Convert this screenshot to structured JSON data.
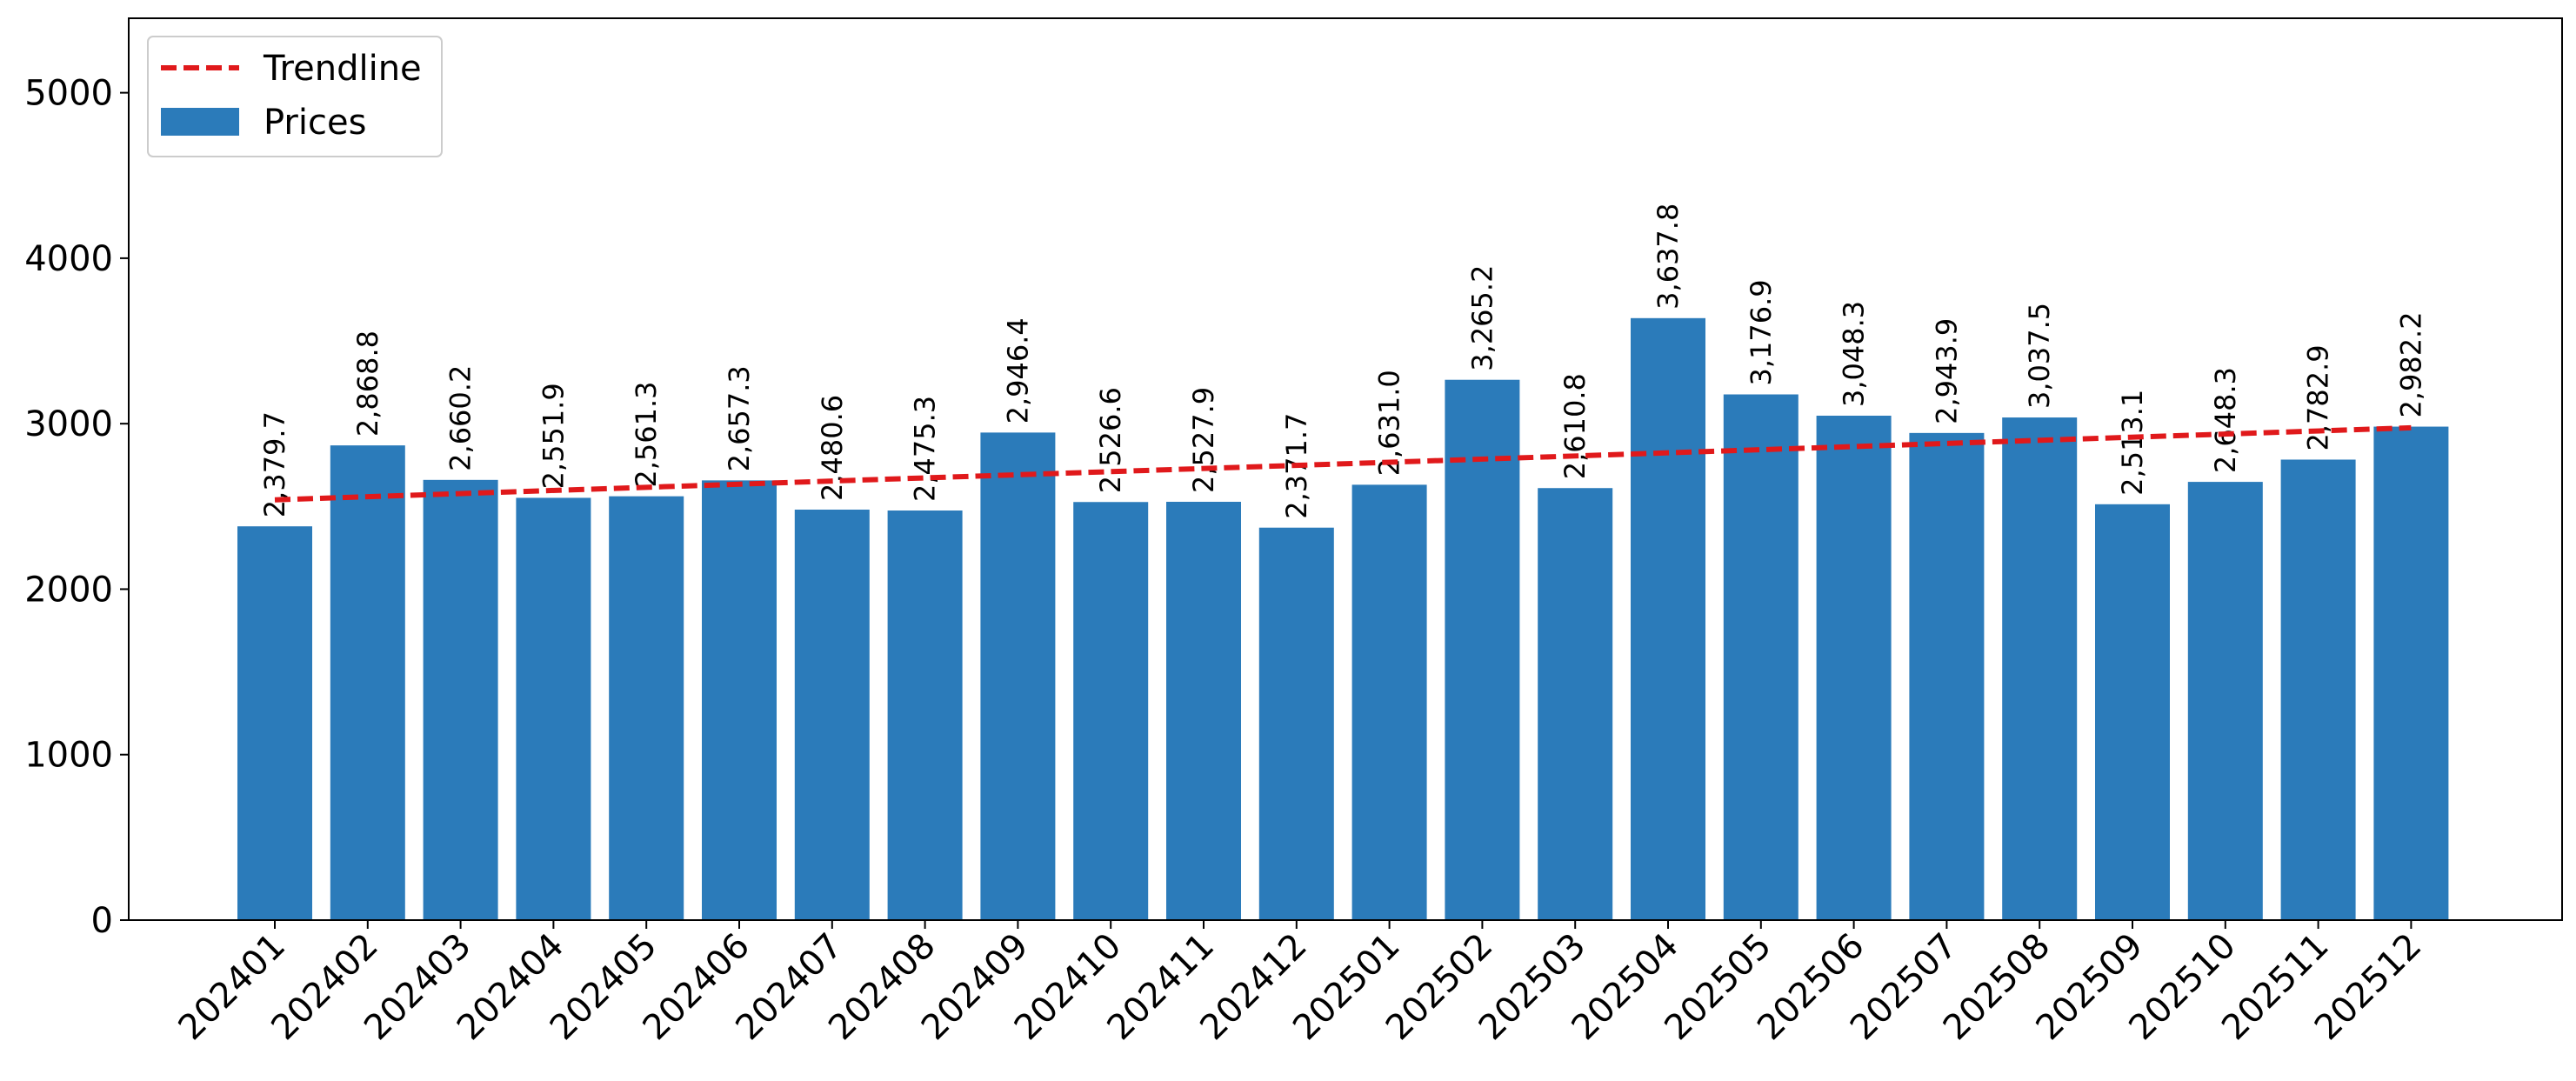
{
  "chart_data": {
    "type": "bar",
    "title": "",
    "xlabel": "",
    "ylabel": "",
    "ylim": [
      0,
      5450
    ],
    "yticks": [
      0,
      1000,
      2000,
      3000,
      4000,
      5000
    ],
    "grid": false,
    "legend_position": "top-left",
    "categories": [
      "202401",
      "202402",
      "202403",
      "202404",
      "202405",
      "202406",
      "202407",
      "202408",
      "202409",
      "202410",
      "202411",
      "202412",
      "202501",
      "202502",
      "202503",
      "202504",
      "202505",
      "202506",
      "202507",
      "202508",
      "202509",
      "202510",
      "202511",
      "202512"
    ],
    "series": [
      {
        "name": "Prices",
        "kind": "bar",
        "color": "#2b7bba",
        "values": [
          2379.7,
          2868.8,
          2660.2,
          2551.9,
          2561.3,
          2657.3,
          2480.6,
          2475.3,
          2946.4,
          2526.6,
          2527.9,
          2371.7,
          2631.0,
          3265.2,
          2610.8,
          3637.8,
          3176.9,
          3048.3,
          2943.9,
          3037.5,
          2513.1,
          2648.3,
          2782.9,
          2982.2
        ],
        "labels": [
          "2,379.7",
          "2,868.8",
          "2,660.2",
          "2,551.9",
          "2,561.3",
          "2,657.3",
          "2,480.6",
          "2,475.3",
          "2,946.4",
          "2,526.6",
          "2,527.9",
          "2,371.7",
          "2,631.0",
          "3,265.2",
          "2,610.8",
          "3,637.8",
          "3,176.9",
          "3,048.3",
          "2,943.9",
          "3,037.5",
          "2,513.1",
          "2,648.3",
          "2,782.9",
          "2,982.2"
        ]
      },
      {
        "name": "Trendline",
        "kind": "line",
        "style": "dashed",
        "color": "#e0191b",
        "start": 2540,
        "end": 2975
      }
    ]
  }
}
